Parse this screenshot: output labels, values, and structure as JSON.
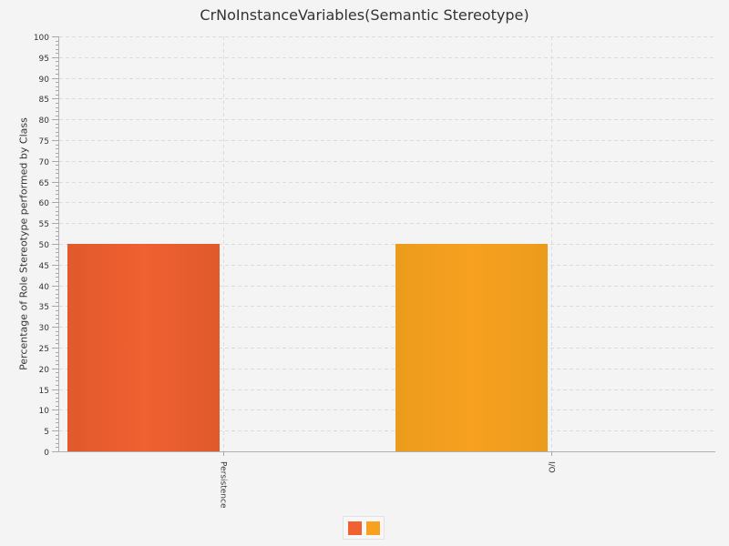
{
  "chart_data": {
    "type": "bar",
    "title": "CrNoInstanceVariables(Semantic Stereotype)",
    "xlabel": "",
    "ylabel": "Percentage of Role Stereotype performed by Class",
    "categories": [
      "Persistence",
      "I/O"
    ],
    "values": [
      50,
      50
    ],
    "ylim": [
      0,
      100
    ],
    "y_major_step": 5,
    "y_minor_step": 1,
    "grid": true,
    "legend": "bottom",
    "colors": [
      "#f06030",
      "#f8a020"
    ],
    "gradient_dark": [
      "#e05a2c",
      "#eb9c1c"
    ]
  }
}
